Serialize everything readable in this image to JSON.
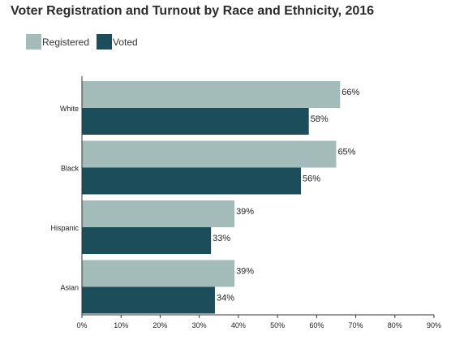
{
  "colors": {
    "registered": "#a3bbb9",
    "voted": "#1b4d5b",
    "axis": "#333333",
    "text": "#222222"
  },
  "chart_data": {
    "type": "bar",
    "orientation": "horizontal",
    "title": "Voter Registration and Turnout by Race and Ethnicity, 2016",
    "categories": [
      "White",
      "Black",
      "Hispanic",
      "Asian"
    ],
    "series": [
      {
        "name": "Registered",
        "values": [
          66,
          65,
          39,
          39
        ],
        "labels": [
          "66%",
          "65%",
          "39%",
          "39%"
        ],
        "color": "#a3bbb9"
      },
      {
        "name": "Voted",
        "values": [
          58,
          56,
          33,
          34
        ],
        "labels": [
          "58%",
          "56%",
          "33%",
          "34%"
        ],
        "color": "#1b4d5b"
      }
    ],
    "xlim": [
      0,
      90
    ],
    "xticks": [
      0,
      10,
      20,
      30,
      40,
      50,
      60,
      70,
      80,
      90
    ],
    "xtick_labels": [
      "0%",
      "10%",
      "20%",
      "30%",
      "40%",
      "50%",
      "60%",
      "70%",
      "80%",
      "90%"
    ],
    "xlabel": "",
    "ylabel": "",
    "grid": false,
    "legend_position": "top-left"
  }
}
